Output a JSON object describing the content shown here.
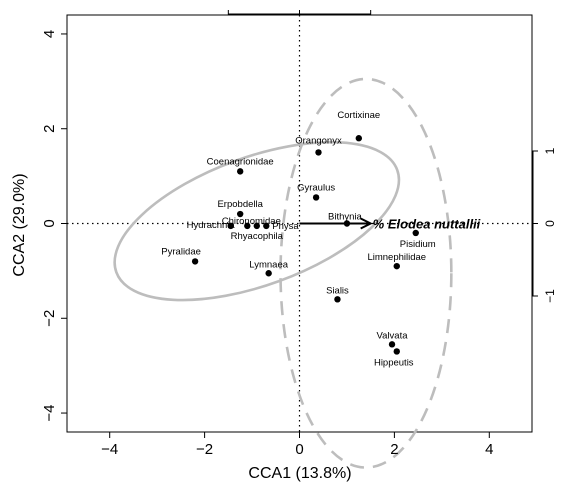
{
  "chart_data": {
    "type": "scatter",
    "xlabel": "CCA1 (13.8%)",
    "ylabel": "CCA2 (29.0%)",
    "xlim": [
      -4.9,
      4.9
    ],
    "ylim": [
      -4.4,
      4.4
    ],
    "x_ticks": [
      "-4",
      "-2",
      "0",
      "2",
      "4"
    ],
    "y_ticks": [
      "-4",
      "-2",
      "0",
      "2",
      "4"
    ],
    "right_axis_ticks": [
      "-1",
      "0",
      "1"
    ],
    "grid": false,
    "points": [
      {
        "label": "Cortixinae",
        "x": 1.25,
        "y": 1.8
      },
      {
        "label": "Orangonyx",
        "x": 0.4,
        "y": 1.5
      },
      {
        "label": "Coenagrionidae",
        "x": -1.25,
        "y": 1.1
      },
      {
        "label": "Gyraulus",
        "x": 0.35,
        "y": 0.55
      },
      {
        "label": "Erpobdella",
        "x": -1.25,
        "y": 0.2
      },
      {
        "label": "Bithynia",
        "x": 1.0,
        "y": 0.0
      },
      {
        "label": "Hydrachnia",
        "x": -1.45,
        "y": -0.05
      },
      {
        "label": "Chironomidae",
        "x": -1.1,
        "y": -0.05
      },
      {
        "label": "Physa",
        "x": -0.7,
        "y": -0.05
      },
      {
        "label": "Rhyacophila",
        "x": -0.9,
        "y": -0.05
      },
      {
        "label": "Pisidium",
        "x": 2.45,
        "y": -0.2
      },
      {
        "label": "Pyralidae",
        "x": -2.2,
        "y": -0.8
      },
      {
        "label": "Limnephilidae",
        "x": 2.05,
        "y": -0.9
      },
      {
        "label": "Lymnaea",
        "x": -0.65,
        "y": -1.05
      },
      {
        "label": "Sialis",
        "x": 0.8,
        "y": -1.6
      },
      {
        "label": "Valvata",
        "x": 1.95,
        "y": -2.55
      },
      {
        "label": "Hippeutis",
        "x": 2.05,
        "y": -2.7
      }
    ],
    "environment_vector": {
      "label": "% Elodea nuttallii",
      "x": 1.5,
      "y": 0.0
    },
    "ellipses": [
      {
        "style": "solid",
        "color": "#bdbdbd",
        "cx": -0.9,
        "cy": 0.05,
        "rx": 3.15,
        "ry": 1.35,
        "angle_deg": 20
      },
      {
        "style": "dashed",
        "color": "#bdbdbd",
        "cx": 1.4,
        "cy": -1.05,
        "rx": 1.8,
        "ry": 4.1,
        "angle_deg": 0
      }
    ]
  }
}
